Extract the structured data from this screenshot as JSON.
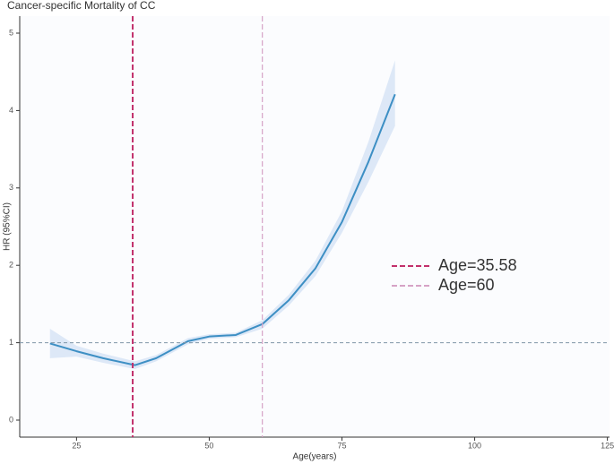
{
  "chart_data": {
    "type": "line",
    "title": "Cancer-specific Mortality of CC",
    "x_label": "Age(years)",
    "y_label": "HR (95%CI)",
    "x": [
      20,
      25,
      30,
      36,
      40,
      46,
      50,
      55,
      60,
      65,
      70,
      75,
      80,
      85
    ],
    "series": [
      {
        "color": "#3d8fc4",
        "values": [
          0.99,
          0.89,
          0.8,
          0.71,
          0.8,
          1.02,
          1.08,
          1.1,
          1.24,
          1.55,
          1.96,
          2.56,
          3.34,
          4.21
        ],
        "ci_lower": [
          0.8,
          0.82,
          0.74,
          0.66,
          0.76,
          0.98,
          1.05,
          1.07,
          1.18,
          1.48,
          1.86,
          2.42,
          3.08,
          3.8
        ],
        "ci_upper": [
          1.18,
          0.96,
          0.86,
          0.76,
          0.84,
          1.06,
          1.11,
          1.13,
          1.29,
          1.62,
          2.06,
          2.7,
          3.6,
          4.65
        ],
        "ci_color": "#dde8f7"
      }
    ],
    "reference_lines": [
      {
        "name": "Age=35.58",
        "x": 35.58,
        "color": "#c2306c"
      },
      {
        "name": "Age=60",
        "x": 60,
        "color": "#d6a3c6"
      }
    ],
    "hline": {
      "y": 1,
      "color": "#7f95a8"
    },
    "xlim": [
      14.3,
      125.4
    ],
    "ylim": [
      -0.22,
      5.22
    ],
    "xticks": [
      25,
      50,
      75,
      100,
      125
    ],
    "yticks": [
      0,
      1,
      2,
      3,
      4,
      5
    ]
  }
}
